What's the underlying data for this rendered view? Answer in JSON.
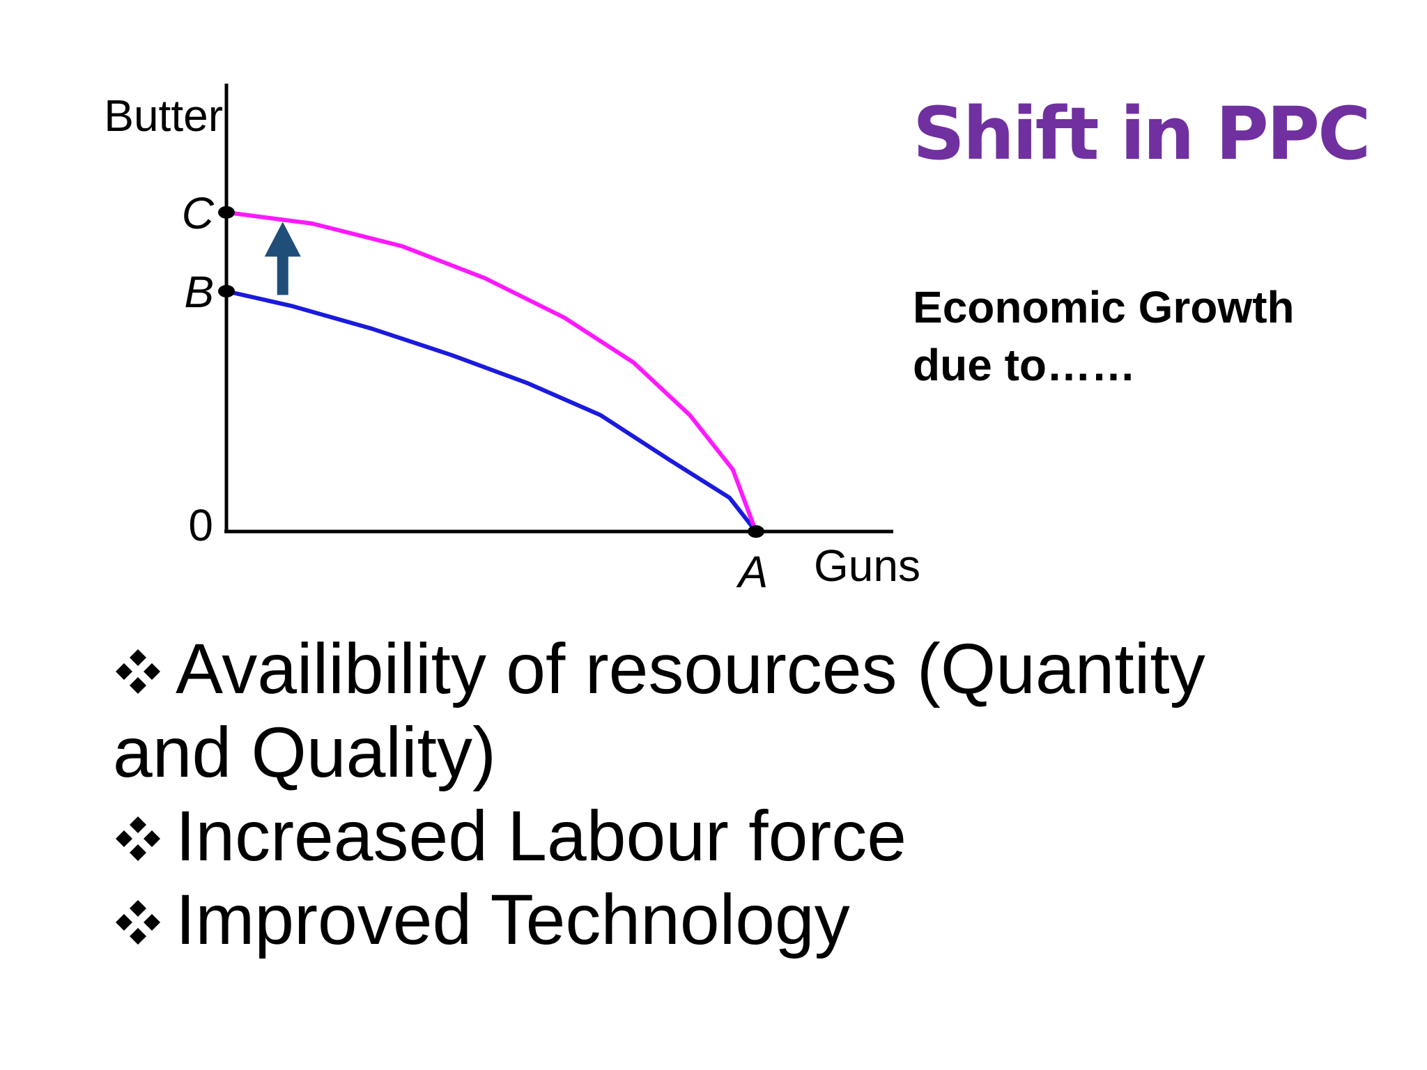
{
  "slide": {
    "title": "Shift in PPC",
    "subtitle_lines": [
      "Economic Growth",
      "due to……"
    ],
    "causes": [
      "Availibility of resources (Quantity and Quality)",
      "Increased Labour force",
      "Improved Technology"
    ],
    "bullet_icon": "four-diamond-bullet-icon"
  },
  "colors": {
    "title": "#7030a0",
    "original_curve": "#1a1adf",
    "shifted_curve": "#ff19ff",
    "arrow": "#1f4e79",
    "axes": "#000000"
  },
  "chart_data": {
    "type": "line",
    "xlabel": "Guns",
    "ylabel": "Butter",
    "origin_label": "0",
    "grid": false,
    "xlim": [
      0,
      100
    ],
    "ylim": [
      0,
      100
    ],
    "points": [
      {
        "label": "C",
        "x": 0,
        "y": 85
      },
      {
        "label": "B",
        "x": 0,
        "y": 64
      },
      {
        "label": "A",
        "x": 80,
        "y": 0
      }
    ],
    "series": [
      {
        "id": "original",
        "color": "#1a1adf",
        "x": [
          0,
          10,
          22,
          34,
          45.5,
          56.5,
          67,
          76,
          80
        ],
        "y": [
          64,
          60,
          54,
          47,
          39.5,
          31,
          19,
          9,
          0
        ]
      },
      {
        "id": "shifted",
        "color": "#ff19ff",
        "x": [
          0,
          13,
          26.5,
          39,
          51,
          61.5,
          70,
          76.5,
          80
        ],
        "y": [
          85,
          82,
          76,
          67.5,
          57,
          45,
          31,
          16.5,
          0
        ]
      }
    ],
    "annotation": {
      "type": "arrow",
      "direction": "up",
      "x": 8.5,
      "y_from": 63,
      "y_to": 82.5
    }
  }
}
